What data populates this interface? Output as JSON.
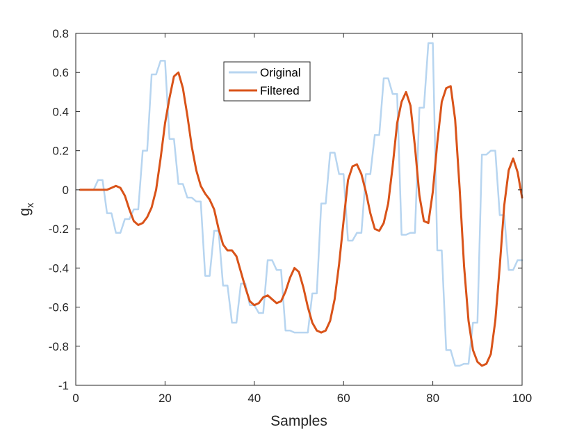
{
  "chart_data": {
    "type": "line",
    "xlabel": "Samples",
    "ylabel": "g",
    "ylabel_subscript": "x",
    "xlim": [
      0,
      100
    ],
    "ylim": [
      -1,
      0.8
    ],
    "xticks": [
      0,
      20,
      40,
      60,
      80,
      100
    ],
    "yticks": [
      -1,
      -0.8,
      -0.6,
      -0.4,
      -0.2,
      0,
      0.2,
      0.4,
      0.6,
      0.8
    ],
    "grid": false,
    "legend_position": "top-center",
    "series": [
      {
        "name": "Original",
        "color": "#b7d5f0",
        "style": "step",
        "x": [
          1,
          2,
          3,
          4,
          5,
          6,
          7,
          8,
          9,
          10,
          11,
          12,
          13,
          14,
          15,
          16,
          17,
          18,
          19,
          20,
          21,
          22,
          23,
          24,
          25,
          26,
          27,
          28,
          29,
          30,
          31,
          32,
          33,
          34,
          35,
          36,
          37,
          38,
          39,
          40,
          41,
          42,
          43,
          44,
          45,
          46,
          47,
          48,
          49,
          50,
          51,
          52,
          53,
          54,
          55,
          56,
          57,
          58,
          59,
          60,
          61,
          62,
          63,
          64,
          65,
          66,
          67,
          68,
          69,
          70,
          71,
          72,
          73,
          74,
          75,
          76,
          77,
          78,
          79,
          80,
          81,
          82,
          83,
          84,
          85,
          86,
          87,
          88,
          89,
          90,
          91,
          92,
          93,
          94,
          95,
          96,
          97,
          98,
          99,
          100
        ],
        "values": [
          0,
          0,
          0,
          0,
          0.05,
          0.05,
          -0.12,
          -0.12,
          -0.22,
          -0.22,
          -0.15,
          -0.15,
          -0.1,
          -0.1,
          0.2,
          0.2,
          0.59,
          0.59,
          0.66,
          0.66,
          0.26,
          0.26,
          0.03,
          0.03,
          -0.04,
          -0.04,
          -0.06,
          -0.06,
          -0.44,
          -0.44,
          -0.21,
          -0.21,
          -0.49,
          -0.49,
          -0.68,
          -0.68,
          -0.48,
          -0.48,
          -0.59,
          -0.59,
          -0.63,
          -0.63,
          -0.36,
          -0.36,
          -0.41,
          -0.41,
          -0.72,
          -0.72,
          -0.73,
          -0.73,
          -0.73,
          -0.73,
          -0.53,
          -0.53,
          -0.07,
          -0.07,
          0.19,
          0.19,
          0.08,
          0.08,
          -0.26,
          -0.26,
          -0.22,
          -0.22,
          0.08,
          0.08,
          0.28,
          0.28,
          0.57,
          0.57,
          0.49,
          0.49,
          -0.23,
          -0.23,
          -0.22,
          -0.22,
          0.42,
          0.42,
          0.75,
          0.75,
          -0.31,
          -0.31,
          -0.82,
          -0.82,
          -0.9,
          -0.9,
          -0.89,
          -0.89,
          -0.68,
          -0.68,
          0.18,
          0.18,
          0.2,
          0.2,
          -0.13,
          -0.13,
          -0.41,
          -0.41,
          -0.36,
          -0.36
        ]
      },
      {
        "name": "Filtered",
        "color": "#d95319",
        "style": "line",
        "x": [
          1,
          2,
          3,
          4,
          5,
          6,
          7,
          8,
          9,
          10,
          11,
          12,
          13,
          14,
          15,
          16,
          17,
          18,
          19,
          20,
          21,
          22,
          23,
          24,
          25,
          26,
          27,
          28,
          29,
          30,
          31,
          32,
          33,
          34,
          35,
          36,
          37,
          38,
          39,
          40,
          41,
          42,
          43,
          44,
          45,
          46,
          47,
          48,
          49,
          50,
          51,
          52,
          53,
          54,
          55,
          56,
          57,
          58,
          59,
          60,
          61,
          62,
          63,
          64,
          65,
          66,
          67,
          68,
          69,
          70,
          71,
          72,
          73,
          74,
          75,
          76,
          77,
          78,
          79,
          80,
          81,
          82,
          83,
          84,
          85,
          86,
          87,
          88,
          89,
          90,
          91,
          92,
          93,
          94,
          95,
          96,
          97,
          98,
          99,
          100
        ],
        "values": [
          0,
          0,
          0,
          0,
          0,
          0,
          0,
          0.01,
          0.02,
          0.01,
          -0.03,
          -0.1,
          -0.16,
          -0.18,
          -0.17,
          -0.14,
          -0.09,
          0,
          0.16,
          0.34,
          0.47,
          0.58,
          0.6,
          0.52,
          0.38,
          0.22,
          0.1,
          0.02,
          -0.02,
          -0.05,
          -0.1,
          -0.2,
          -0.28,
          -0.31,
          -0.31,
          -0.34,
          -0.42,
          -0.5,
          -0.57,
          -0.59,
          -0.58,
          -0.55,
          -0.54,
          -0.56,
          -0.58,
          -0.57,
          -0.52,
          -0.45,
          -0.4,
          -0.42,
          -0.5,
          -0.6,
          -0.68,
          -0.72,
          -0.73,
          -0.72,
          -0.67,
          -0.56,
          -0.38,
          -0.16,
          0.05,
          0.12,
          0.13,
          0.08,
          -0.01,
          -0.12,
          -0.2,
          -0.21,
          -0.17,
          -0.07,
          0.12,
          0.34,
          0.45,
          0.5,
          0.43,
          0.22,
          -0.03,
          -0.16,
          -0.17,
          -0.01,
          0.24,
          0.45,
          0.52,
          0.53,
          0.36,
          0.01,
          -0.39,
          -0.67,
          -0.82,
          -0.88,
          -0.9,
          -0.89,
          -0.84,
          -0.67,
          -0.39,
          -0.08,
          0.1,
          0.16,
          0.09,
          -0.04
        ]
      }
    ]
  }
}
